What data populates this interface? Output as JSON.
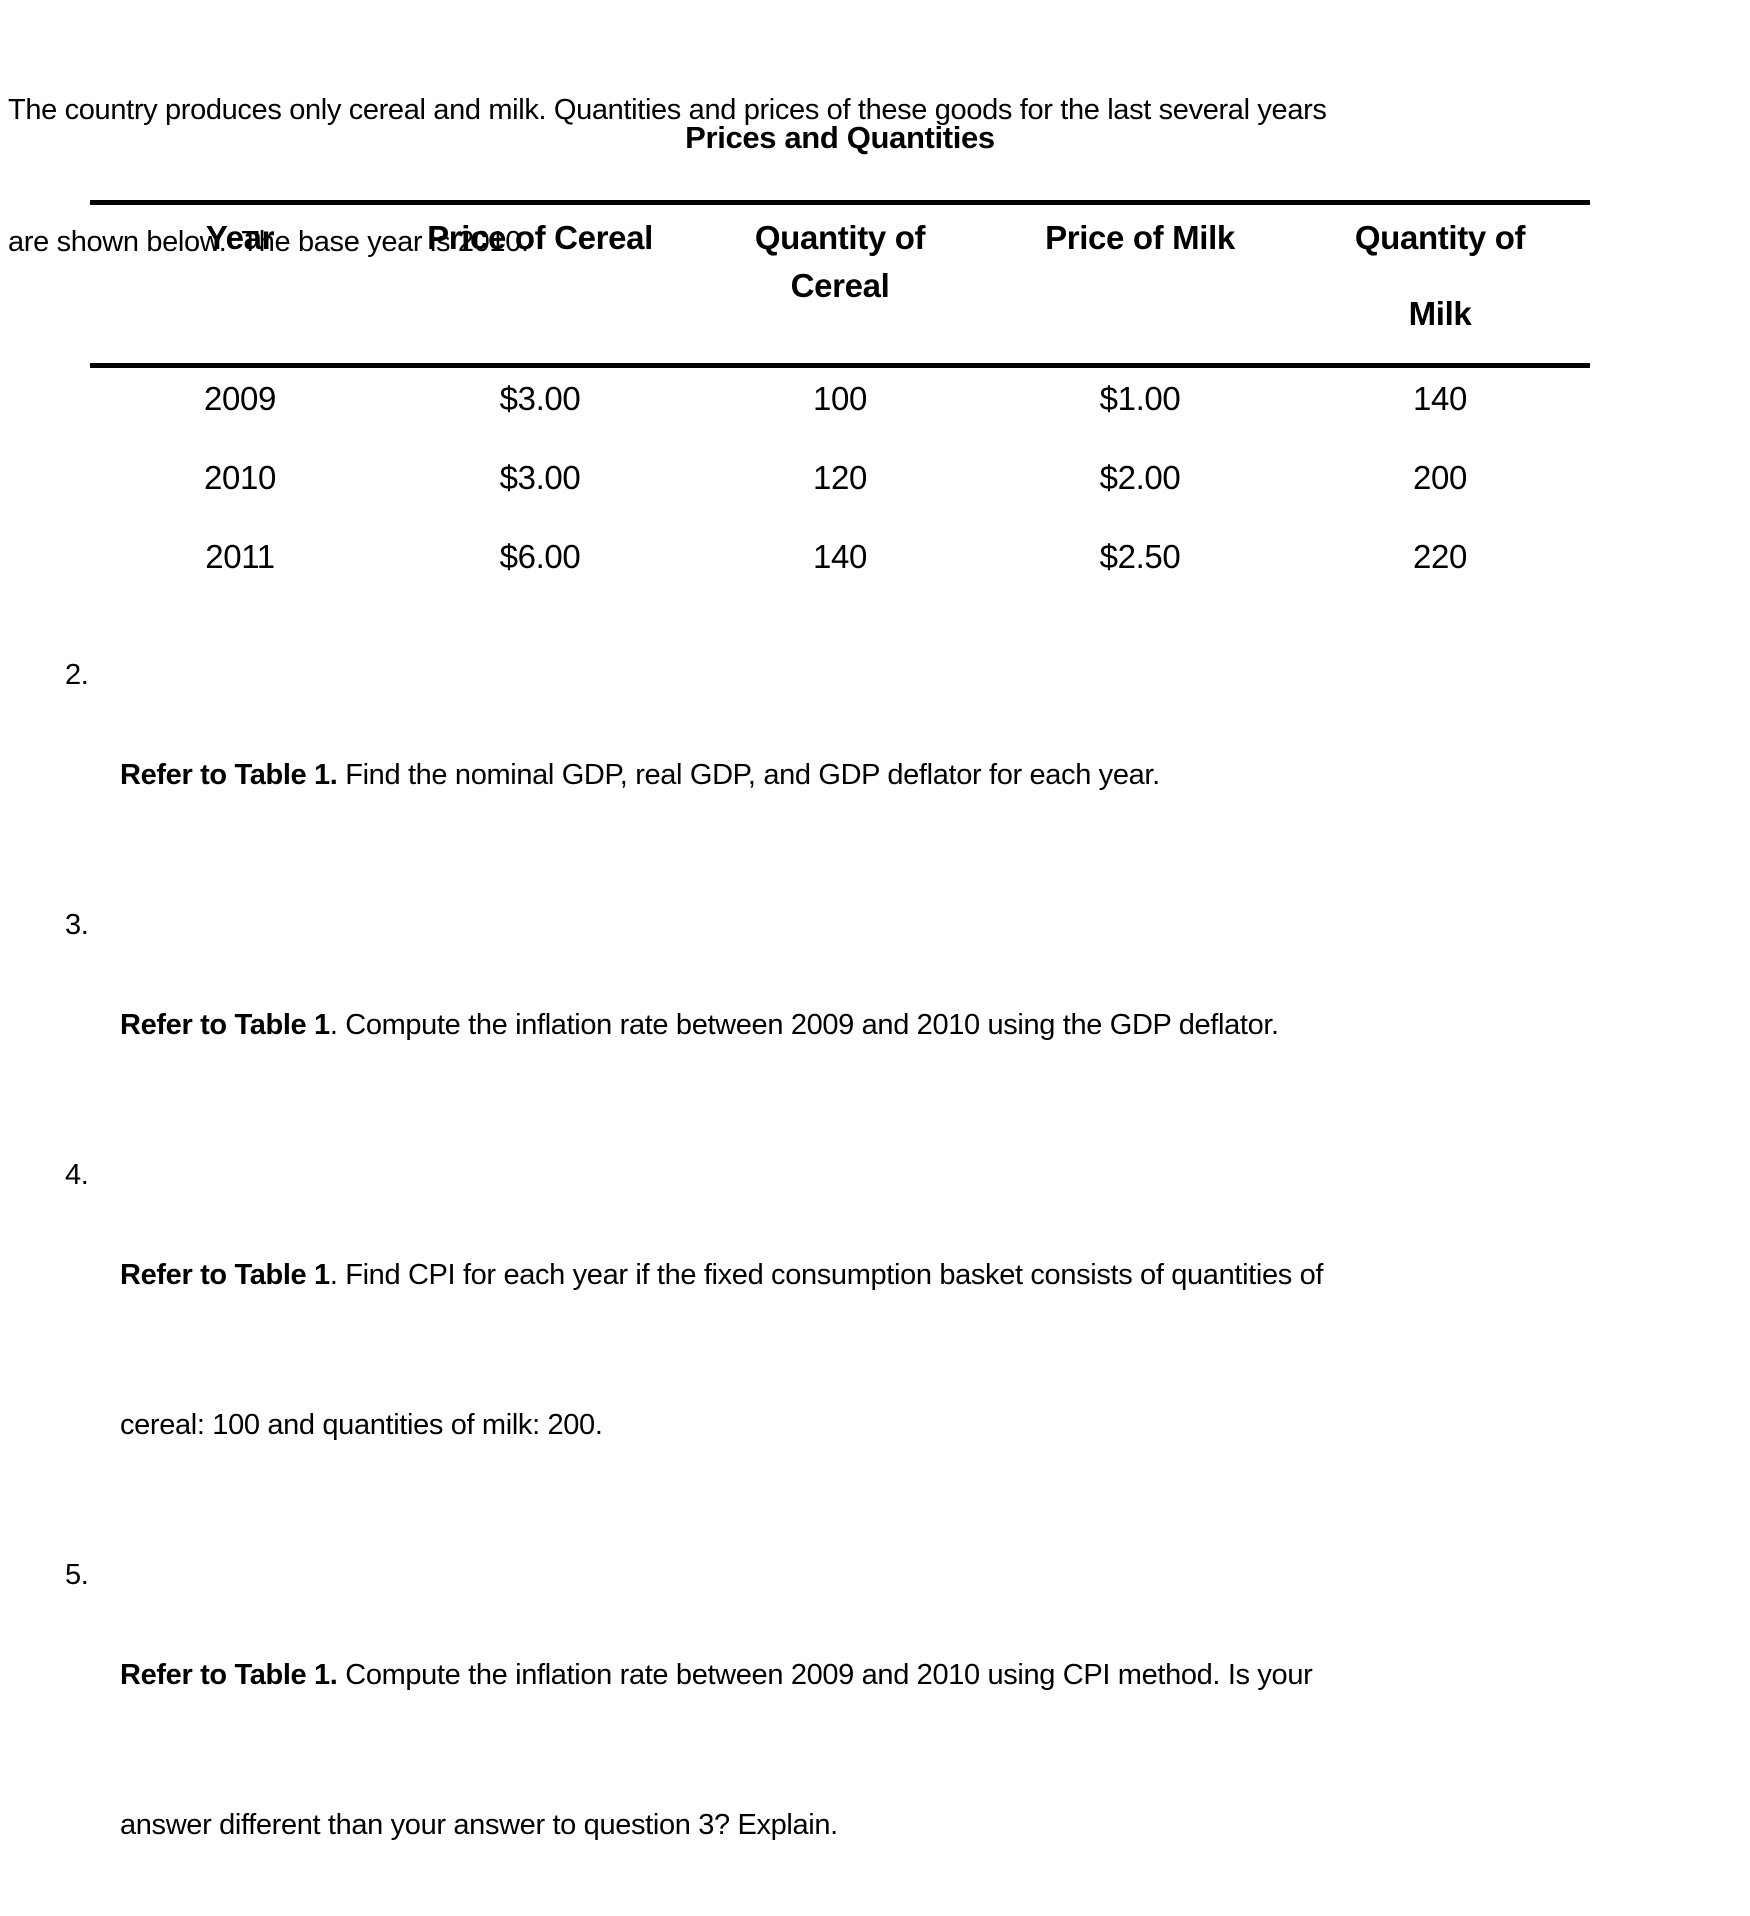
{
  "intro": {
    "line1": "The country produces only cereal and milk. Quantities and prices of these goods for the last several years",
    "line2": "are shown below.  The base year is 2010."
  },
  "table": {
    "title": "Prices and Quantities",
    "columns": [
      {
        "l1": "Year",
        "l2": ""
      },
      {
        "l1": "Price of Cereal",
        "l2": ""
      },
      {
        "l1": "Quantity of",
        "l2": "Cereal"
      },
      {
        "l1": "Price of Milk",
        "l2": ""
      },
      {
        "l1": "Quantity of",
        "l2": "Milk"
      }
    ],
    "rows": [
      [
        "2009",
        "$3.00",
        "100",
        "$1.00",
        "140"
      ],
      [
        "2010",
        "$3.00",
        "120",
        "$2.00",
        "200"
      ],
      [
        "2011",
        "$6.00",
        "140",
        "$2.50",
        "220"
      ]
    ]
  },
  "questions": [
    {
      "num": "2.",
      "bold": "Refer to Table 1.",
      "rest": " Find the nominal GDP, real GDP, and GDP deflator for each year."
    },
    {
      "num": "3.",
      "bold": "Refer to Table 1",
      "rest": ". Compute the inflation rate between 2009 and 2010 using the GDP deflator."
    },
    {
      "num": "4.",
      "bold": "Refer to Table 1",
      "rest": ". Find CPI for each year if the fixed consumption basket consists of quantities of",
      "line2": "cereal: 100 and quantities of milk: 200."
    },
    {
      "num": "5.",
      "bold": "Refer to Table 1.",
      "rest": " Compute the inflation rate between 2009 and 2010 using CPI method. Is your",
      "line2": "answer different than your answer to question 3? Explain."
    }
  ],
  "colors": {
    "text": "#000000",
    "background": "#ffffff",
    "rule": "#000000"
  }
}
